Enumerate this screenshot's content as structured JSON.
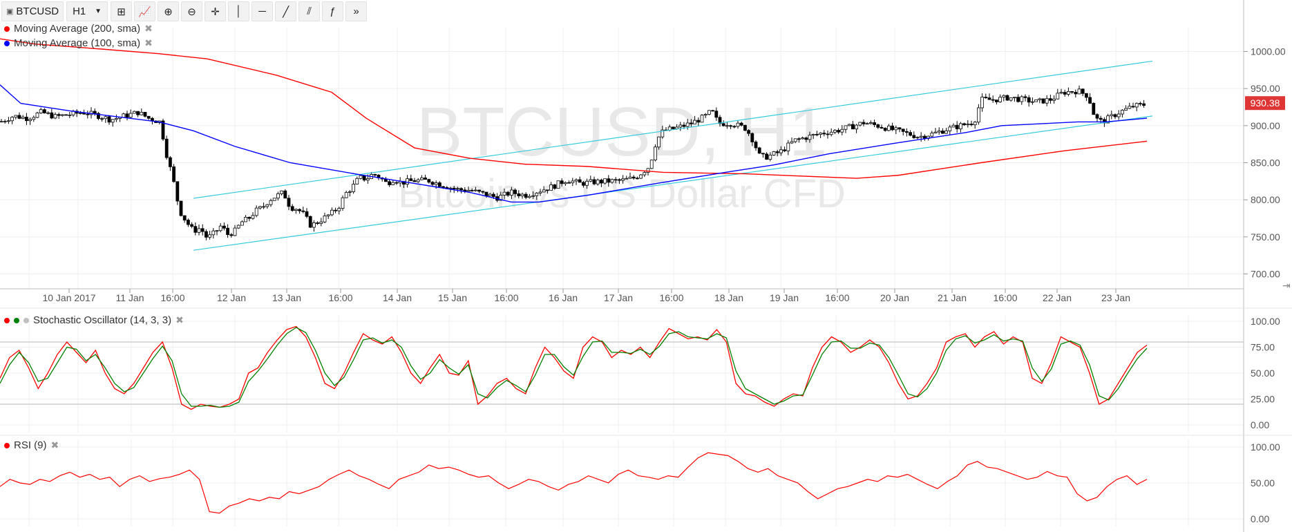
{
  "toolbar": {
    "symbol": "BTCUSD",
    "interval": "H1",
    "tools": [
      {
        "name": "compare-icon",
        "glyph": "⊞"
      },
      {
        "name": "indicators-icon",
        "glyph": "📈"
      },
      {
        "name": "zoom-in-icon",
        "glyph": "⊕"
      },
      {
        "name": "zoom-out-icon",
        "glyph": "⊖"
      },
      {
        "name": "crosshair-icon",
        "glyph": "✛"
      },
      {
        "name": "vertical-line-icon",
        "glyph": "│"
      },
      {
        "name": "horizontal-line-icon",
        "glyph": "─"
      },
      {
        "name": "trend-line-icon",
        "glyph": "╱"
      },
      {
        "name": "pitchfork-icon",
        "glyph": "⫽"
      },
      {
        "name": "fibonacci-icon",
        "glyph": "ƒ"
      },
      {
        "name": "more-tools-icon",
        "glyph": "»"
      }
    ]
  },
  "legend": {
    "ma200": {
      "label": "Moving Average (200, sma)",
      "color": "#ff0000"
    },
    "ma100": {
      "label": "Moving Average (100, sma)",
      "color": "#0000ff"
    },
    "stoch": {
      "label": "Stochastic Oscillator (14, 3, 3)"
    },
    "rsi": {
      "label": "RSI (9)",
      "color": "#ff0000"
    },
    "close_glyph": "✖"
  },
  "watermark": {
    "title": "BTCUSD, H1",
    "subtitle": "Bitcoin vs US Dollar CFD"
  },
  "price_label": "930.38",
  "chart_data": [
    {
      "type": "candlestick",
      "symbol": "BTCUSD",
      "interval": "H1",
      "x_labels": [
        "10 Jan 2017",
        "11 Jan",
        "16:00",
        "12 Jan",
        "13 Jan",
        "16:00",
        "14 Jan",
        "15 Jan",
        "16:00",
        "16 Jan",
        "17 Jan",
        "16:00",
        "18 Jan",
        "19 Jan",
        "16:00",
        "20 Jan",
        "21 Jan",
        "16:00",
        "22 Jan",
        "23 Jan"
      ],
      "ylim": [
        680,
        1020
      ],
      "y_ticks": [
        "1000.00",
        "950.00",
        "900.00",
        "850.00",
        "800.00",
        "750.00",
        "700.00"
      ],
      "last_price": 930.38,
      "close_path": [
        [
          0,
          905
        ],
        [
          20,
          913
        ],
        [
          40,
          910
        ],
        [
          60,
          918
        ],
        [
          80,
          912
        ],
        [
          100,
          915
        ],
        [
          120,
          918
        ],
        [
          140,
          914
        ],
        [
          160,
          908
        ],
        [
          180,
          913
        ],
        [
          200,
          918
        ],
        [
          215,
          910
        ],
        [
          232,
          905
        ],
        [
          240,
          865
        ],
        [
          250,
          830
        ],
        [
          260,
          785
        ],
        [
          270,
          770
        ],
        [
          280,
          758
        ],
        [
          290,
          762
        ],
        [
          300,
          748
        ],
        [
          310,
          755
        ],
        [
          320,
          765
        ],
        [
          330,
          753
        ],
        [
          340,
          758
        ],
        [
          350,
          770
        ],
        [
          360,
          775
        ],
        [
          370,
          785
        ],
        [
          380,
          790
        ],
        [
          390,
          800
        ],
        [
          400,
          805
        ],
        [
          410,
          810
        ],
        [
          420,
          790
        ],
        [
          430,
          788
        ],
        [
          440,
          780
        ],
        [
          450,
          765
        ],
        [
          460,
          770
        ],
        [
          470,
          776
        ],
        [
          480,
          782
        ],
        [
          490,
          790
        ],
        [
          500,
          808
        ],
        [
          510,
          817
        ],
        [
          520,
          830
        ],
        [
          530,
          828
        ],
        [
          540,
          835
        ],
        [
          550,
          830
        ],
        [
          560,
          822
        ],
        [
          570,
          828
        ],
        [
          580,
          823
        ],
        [
          600,
          826
        ],
        [
          620,
          826
        ],
        [
          640,
          820
        ],
        [
          660,
          814
        ],
        [
          680,
          813
        ],
        [
          700,
          808
        ],
        [
          720,
          803
        ],
        [
          740,
          810
        ],
        [
          760,
          806
        ],
        [
          780,
          812
        ],
        [
          800,
          818
        ],
        [
          820,
          827
        ],
        [
          840,
          822
        ],
        [
          860,
          824
        ],
        [
          880,
          825
        ],
        [
          900,
          826
        ],
        [
          920,
          830
        ],
        [
          940,
          845
        ],
        [
          950,
          880
        ],
        [
          960,
          893
        ],
        [
          980,
          897
        ],
        [
          1000,
          903
        ],
        [
          1020,
          912
        ],
        [
          1030,
          920
        ],
        [
          1040,
          903
        ],
        [
          1060,
          903
        ],
        [
          1080,
          896
        ],
        [
          1090,
          880
        ],
        [
          1100,
          858
        ],
        [
          1110,
          858
        ],
        [
          1130,
          865
        ],
        [
          1150,
          880
        ],
        [
          1170,
          885
        ],
        [
          1190,
          890
        ],
        [
          1210,
          893
        ],
        [
          1230,
          898
        ],
        [
          1250,
          904
        ],
        [
          1270,
          900
        ],
        [
          1290,
          895
        ],
        [
          1310,
          890
        ],
        [
          1330,
          885
        ],
        [
          1350,
          889
        ],
        [
          1370,
          895
        ],
        [
          1390,
          900
        ],
        [
          1410,
          905
        ],
        [
          1420,
          935
        ],
        [
          1440,
          935
        ],
        [
          1460,
          938
        ],
        [
          1480,
          935
        ],
        [
          1500,
          932
        ],
        [
          1520,
          935
        ],
        [
          1540,
          945
        ],
        [
          1560,
          947
        ],
        [
          1575,
          940
        ],
        [
          1585,
          910
        ],
        [
          1595,
          905
        ],
        [
          1605,
          910
        ],
        [
          1620,
          918
        ],
        [
          1640,
          926
        ],
        [
          1655,
          928
        ],
        [
          1660,
          930.38
        ]
      ],
      "ma200_path": [
        [
          0,
          1017
        ],
        [
          50,
          1010
        ],
        [
          150,
          1003
        ],
        [
          230,
          997
        ],
        [
          300,
          990
        ],
        [
          400,
          968
        ],
        [
          480,
          945
        ],
        [
          530,
          910
        ],
        [
          600,
          870
        ],
        [
          680,
          856
        ],
        [
          760,
          848
        ],
        [
          850,
          845
        ],
        [
          960,
          837
        ],
        [
          1080,
          835
        ],
        [
          1240,
          829
        ],
        [
          1300,
          833
        ],
        [
          1420,
          850
        ],
        [
          1540,
          866
        ],
        [
          1660,
          879
        ]
      ],
      "ma100_path": [
        [
          0,
          955
        ],
        [
          30,
          930
        ],
        [
          100,
          920
        ],
        [
          230,
          905
        ],
        [
          280,
          893
        ],
        [
          340,
          872
        ],
        [
          420,
          850
        ],
        [
          520,
          834
        ],
        [
          600,
          822
        ],
        [
          680,
          810
        ],
        [
          740,
          797
        ],
        [
          780,
          797
        ],
        [
          850,
          806
        ],
        [
          950,
          822
        ],
        [
          1050,
          837
        ],
        [
          1120,
          847
        ],
        [
          1200,
          862
        ],
        [
          1300,
          877
        ],
        [
          1400,
          891
        ],
        [
          1450,
          900
        ],
        [
          1560,
          905
        ],
        [
          1600,
          905
        ],
        [
          1660,
          910
        ]
      ],
      "channel_upper": [
        [
          280,
          802
        ],
        [
          1668,
          987
        ]
      ],
      "channel_lower": [
        [
          280,
          732
        ],
        [
          1668,
          913
        ]
      ]
    },
    {
      "type": "line",
      "name": "Stochastic Oscillator (14, 3, 3)",
      "ylim": [
        0,
        100
      ],
      "y_ticks": [
        "100.00",
        "75.00",
        "50.00",
        "25.00",
        "0.00"
      ],
      "levels": [
        80,
        20
      ],
      "series": [
        {
          "color": "#ff0000",
          "values": [
            45,
            65,
            72,
            55,
            35,
            50,
            68,
            80,
            70,
            60,
            72,
            50,
            35,
            30,
            40,
            55,
            70,
            80,
            55,
            20,
            15,
            20,
            18,
            17,
            20,
            25,
            50,
            55,
            70,
            82,
            92,
            95,
            85,
            65,
            40,
            35,
            50,
            70,
            88,
            82,
            78,
            85,
            70,
            50,
            40,
            55,
            68,
            50,
            48,
            62,
            20,
            28,
            40,
            45,
            35,
            30,
            55,
            75,
            65,
            52,
            45,
            75,
            85,
            80,
            65,
            72,
            68,
            75,
            65,
            80,
            93,
            88,
            83,
            85,
            82,
            92,
            80,
            40,
            30,
            28,
            22,
            18,
            25,
            30,
            28,
            55,
            75,
            85,
            80,
            70,
            75,
            82,
            75,
            60,
            40,
            25,
            28,
            40,
            55,
            80,
            85,
            88,
            75,
            85,
            90,
            78,
            85,
            80,
            45,
            40,
            60,
            85,
            80,
            75,
            50,
            20,
            25,
            40,
            55,
            70,
            77
          ]
        },
        {
          "color": "#008000",
          "values": [
            40,
            58,
            70,
            60,
            42,
            45,
            60,
            75,
            73,
            62,
            68,
            55,
            40,
            32,
            36,
            50,
            64,
            76,
            62,
            30,
            18,
            18,
            19,
            17,
            18,
            22,
            42,
            52,
            64,
            77,
            88,
            94,
            89,
            72,
            50,
            38,
            46,
            63,
            82,
            84,
            79,
            82,
            75,
            57,
            44,
            50,
            63,
            55,
            49,
            58,
            30,
            26,
            36,
            43,
            38,
            32,
            48,
            68,
            68,
            56,
            48,
            66,
            80,
            81,
            70,
            70,
            69,
            73,
            68,
            76,
            88,
            90,
            85,
            84,
            83,
            88,
            84,
            52,
            35,
            30,
            25,
            20,
            23,
            28,
            29,
            48,
            68,
            80,
            81,
            74,
            74,
            79,
            77,
            65,
            48,
            30,
            27,
            35,
            50,
            72,
            83,
            86,
            79,
            82,
            87,
            81,
            83,
            81,
            55,
            42,
            54,
            78,
            81,
            77,
            58,
            28,
            24,
            35,
            50,
            64,
            74
          ]
        }
      ]
    },
    {
      "type": "line",
      "name": "RSI (9)",
      "ylim": [
        0,
        100
      ],
      "y_ticks": [
        "100.00",
        "50.00",
        "0.00"
      ],
      "series": [
        {
          "color": "#ff0000",
          "values": [
            45,
            55,
            50,
            48,
            55,
            52,
            60,
            65,
            58,
            62,
            55,
            58,
            45,
            55,
            60,
            52,
            56,
            58,
            62,
            68,
            55,
            10,
            8,
            18,
            22,
            28,
            25,
            30,
            28,
            38,
            35,
            40,
            45,
            55,
            62,
            68,
            60,
            55,
            48,
            42,
            55,
            60,
            65,
            75,
            70,
            72,
            68,
            62,
            58,
            60,
            50,
            42,
            48,
            55,
            52,
            45,
            40,
            48,
            52,
            60,
            55,
            50,
            62,
            68,
            60,
            58,
            55,
            60,
            58,
            72,
            85,
            92,
            90,
            88,
            80,
            70,
            65,
            70,
            60,
            55,
            50,
            38,
            28,
            35,
            42,
            45,
            50,
            55,
            52,
            60,
            58,
            62,
            55,
            48,
            42,
            52,
            60,
            75,
            80,
            72,
            70,
            65,
            60,
            55,
            58,
            66,
            60,
            58,
            35,
            25,
            30,
            45,
            55,
            60,
            48,
            55
          ]
        }
      ]
    }
  ]
}
